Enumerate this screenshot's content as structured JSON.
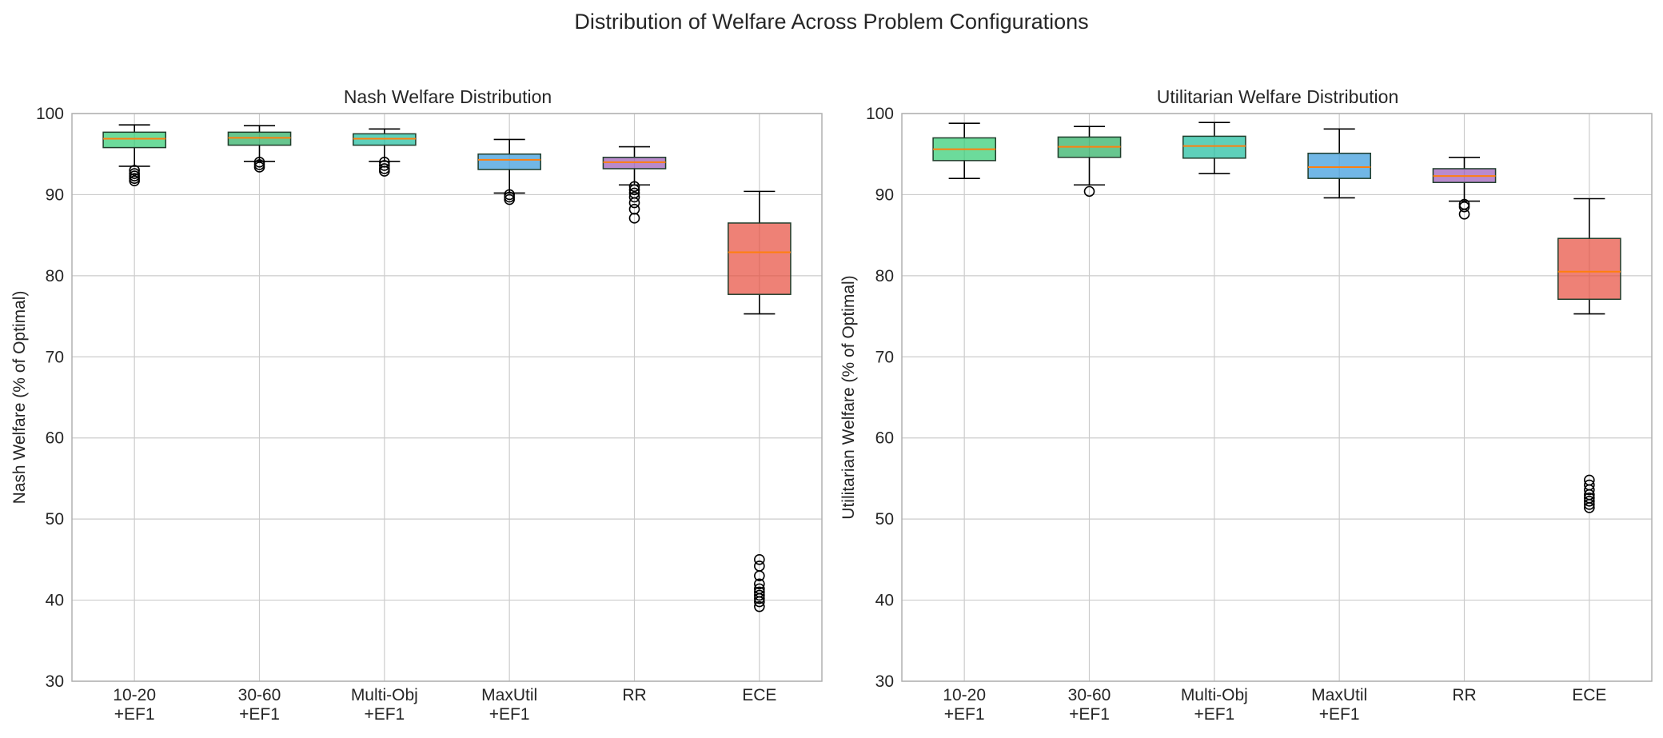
{
  "figure": {
    "suptitle": "Distribution of Welfare Across Problem Configurations"
  },
  "colors": {
    "boxes": [
      "#2ecc71",
      "#27ae60",
      "#1abc9c",
      "#3498db",
      "#9b59b6",
      "#e74c3c"
    ],
    "median": "#ff7f0e",
    "grid": "#cccccc",
    "spine": "#b0b0b0"
  },
  "chart_data": [
    {
      "type": "box",
      "title": "Nash Welfare Distribution",
      "xlabel": "",
      "ylabel": "Nash Welfare (% of Optimal)",
      "ylim": [
        30,
        100
      ],
      "yticks": [
        30,
        40,
        50,
        60,
        70,
        80,
        90,
        100
      ],
      "grid": true,
      "categories": [
        [
          "10-20",
          "+EF1"
        ],
        [
          "30-60",
          "+EF1"
        ],
        [
          "Multi-Obj",
          "+EF1"
        ],
        [
          "MaxUtil",
          "+EF1"
        ],
        [
          "RR"
        ],
        [
          "ECE"
        ]
      ],
      "boxes": [
        {
          "whislo": 93.5,
          "q1": 95.8,
          "med": 96.9,
          "q3": 97.7,
          "whishi": 98.6,
          "fliers": [
            93.0,
            92.6,
            92.3,
            92.0,
            91.7
          ]
        },
        {
          "whislo": 94.1,
          "q1": 96.1,
          "med": 97.0,
          "q3": 97.7,
          "whishi": 98.5,
          "fliers": [
            94.0,
            93.7,
            93.4
          ]
        },
        {
          "whislo": 94.1,
          "q1": 96.1,
          "med": 96.9,
          "q3": 97.5,
          "whishi": 98.1,
          "fliers": [
            94.0,
            93.6,
            93.2,
            92.9
          ]
        },
        {
          "whislo": 90.2,
          "q1": 93.1,
          "med": 94.3,
          "q3": 95.0,
          "whishi": 96.8,
          "fliers": [
            90.0,
            89.7,
            89.4
          ]
        },
        {
          "whislo": 91.2,
          "q1": 93.2,
          "med": 94.0,
          "q3": 94.6,
          "whishi": 95.9,
          "fliers": [
            91.0,
            90.6,
            90.2,
            89.7,
            89.0,
            88.2,
            87.1
          ]
        },
        {
          "whislo": 75.3,
          "q1": 77.7,
          "med": 82.9,
          "q3": 86.5,
          "whishi": 90.4,
          "fliers": [
            45.0,
            44.2,
            43.0,
            42.0,
            41.4,
            41.0,
            40.6,
            40.2,
            39.8,
            39.2
          ]
        }
      ]
    },
    {
      "type": "box",
      "title": "Utilitarian Welfare Distribution",
      "xlabel": "",
      "ylabel": "Utilitarian Welfare (% of Optimal)",
      "ylim": [
        30,
        100
      ],
      "yticks": [
        30,
        40,
        50,
        60,
        70,
        80,
        90,
        100
      ],
      "grid": true,
      "categories": [
        [
          "10-20",
          "+EF1"
        ],
        [
          "30-60",
          "+EF1"
        ],
        [
          "Multi-Obj",
          "+EF1"
        ],
        [
          "MaxUtil",
          "+EF1"
        ],
        [
          "RR"
        ],
        [
          "ECE"
        ]
      ],
      "boxes": [
        {
          "whislo": 92.0,
          "q1": 94.2,
          "med": 95.6,
          "q3": 97.0,
          "whishi": 98.8,
          "fliers": []
        },
        {
          "whislo": 91.2,
          "q1": 94.6,
          "med": 95.9,
          "q3": 97.1,
          "whishi": 98.4,
          "fliers": [
            90.4
          ]
        },
        {
          "whislo": 92.6,
          "q1": 94.5,
          "med": 96.0,
          "q3": 97.2,
          "whishi": 98.9,
          "fliers": []
        },
        {
          "whislo": 89.6,
          "q1": 92.0,
          "med": 93.4,
          "q3": 95.1,
          "whishi": 98.1,
          "fliers": []
        },
        {
          "whislo": 89.2,
          "q1": 91.5,
          "med": 92.3,
          "q3": 93.2,
          "whishi": 94.6,
          "fliers": [
            88.8,
            88.5,
            87.6
          ]
        },
        {
          "whislo": 75.3,
          "q1": 77.1,
          "med": 80.5,
          "q3": 84.6,
          "whishi": 89.5,
          "fliers": [
            54.8,
            54.2,
            53.6,
            53.0,
            52.6,
            52.2,
            51.8,
            51.4
          ]
        }
      ]
    }
  ]
}
